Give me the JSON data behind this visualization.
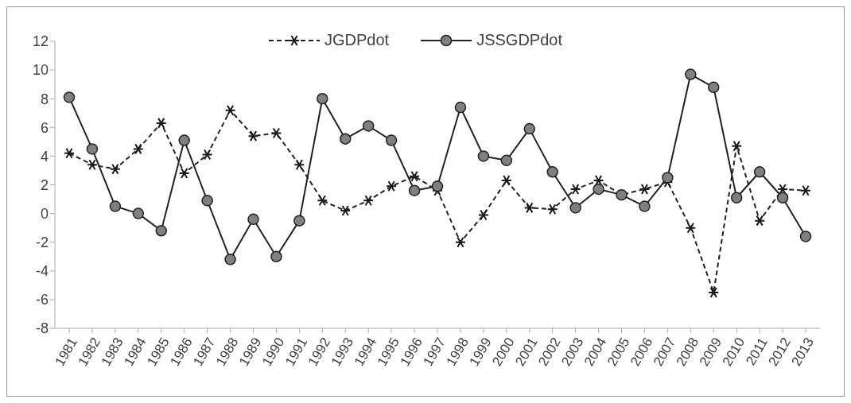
{
  "chart_data": {
    "type": "line",
    "categories": [
      "1981",
      "1982",
      "1983",
      "1984",
      "1985",
      "1986",
      "1987",
      "1988",
      "1989",
      "1990",
      "1991",
      "1992",
      "1993",
      "1994",
      "1995",
      "1996",
      "1997",
      "1998",
      "1999",
      "2000",
      "2001",
      "2002",
      "2003",
      "2004",
      "2005",
      "2006",
      "2007",
      "2008",
      "2009",
      "2010",
      "2011",
      "2012",
      "2013"
    ],
    "series": [
      {
        "name": "JGDPdot",
        "color": "#1a1a1a",
        "marker": "cross",
        "line_style": "dashed",
        "values": [
          4.2,
          3.4,
          3.1,
          4.5,
          6.3,
          2.8,
          4.1,
          7.2,
          5.4,
          5.6,
          3.4,
          0.9,
          0.2,
          0.9,
          1.9,
          2.6,
          1.6,
          -2.0,
          -0.1,
          2.3,
          0.4,
          0.3,
          1.7,
          2.3,
          1.3,
          1.7,
          2.2,
          -1.0,
          -5.5,
          4.7,
          -0.5,
          1.7,
          1.6
        ]
      },
      {
        "name": "JSSGDPdot",
        "color": "#808080",
        "marker": "circle",
        "line_style": "solid",
        "values": [
          8.1,
          4.5,
          0.5,
          0.0,
          -1.2,
          5.1,
          0.9,
          -3.2,
          -0.4,
          -3.0,
          -0.5,
          8.0,
          5.2,
          6.1,
          5.1,
          1.6,
          1.9,
          7.4,
          4.0,
          3.7,
          5.9,
          2.9,
          0.4,
          1.7,
          1.3,
          0.5,
          2.5,
          9.7,
          8.8,
          1.1,
          2.9,
          1.1,
          -1.6
        ]
      }
    ],
    "ylim": [
      -8,
      12
    ],
    "yticks": [
      -8,
      -6,
      -4,
      -2,
      0,
      2,
      4,
      6,
      8,
      10,
      12
    ],
    "grid": false,
    "legend": "top"
  }
}
